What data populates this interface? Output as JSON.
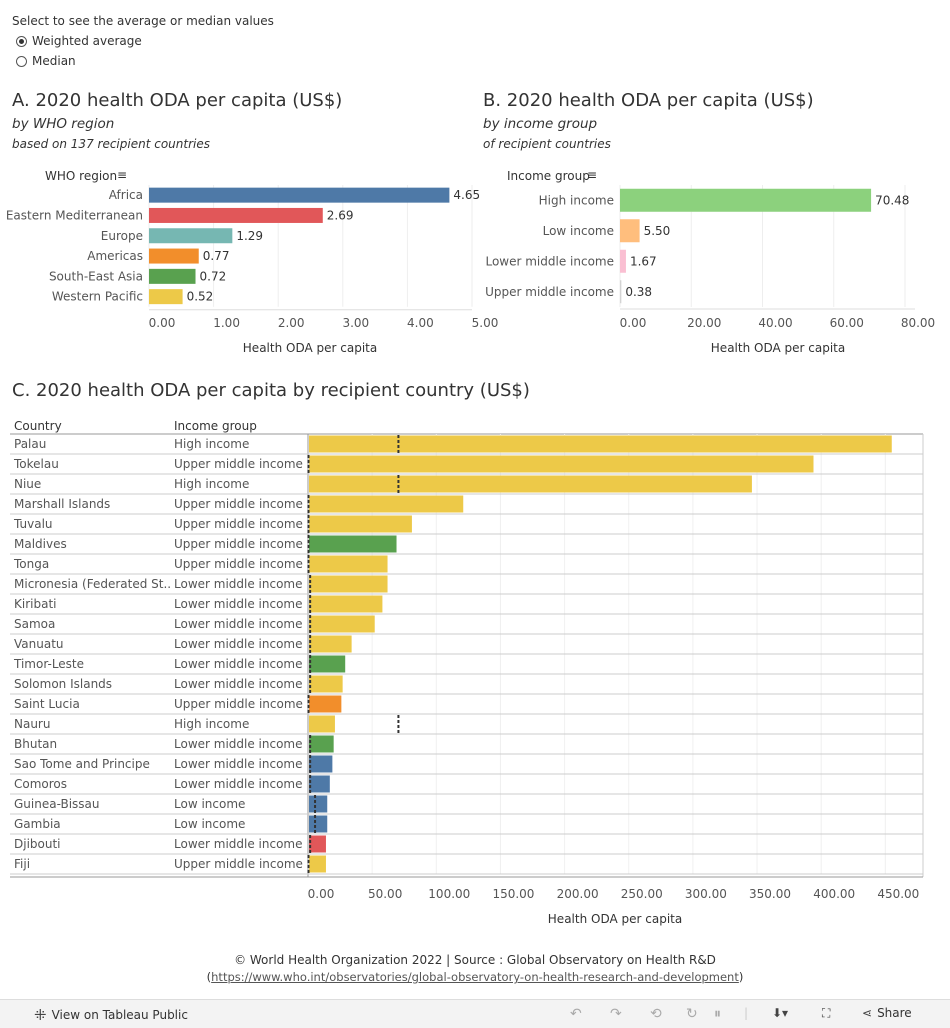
{
  "controls": {
    "title": "Select to see the average or median values",
    "options": [
      "Weighted average",
      "Median"
    ],
    "selected": "Weighted average"
  },
  "panelA": {
    "title": "A. 2020 health ODA per capita (US$)",
    "subtitle": "by WHO region",
    "subtitle2": "based on 137 recipient countries"
  },
  "panelB": {
    "title": "B. 2020 health ODA per capita (US$)",
    "subtitle": "by income group",
    "subtitle2": "of recipient countries"
  },
  "panelC": {
    "title": "C. 2020 health ODA per capita by recipient country (US$)"
  },
  "colors": {
    "Africa": "#4e79a7",
    "Eastern Mediterranean": "#e15759",
    "Europe": "#76b7b2",
    "Americas": "#f28e2b",
    "South-East Asia": "#59a14f",
    "Western Pacific": "#edc948",
    "High income": "#8cd17d",
    "Low income": "#ffbe7d",
    "Lower middle income": "#fabfd2",
    "Upper middle income": "#d4d4d4",
    "avg_line": "#333333"
  },
  "chart_data": [
    {
      "type": "bar",
      "id": "who",
      "orientation": "horizontal",
      "dim_header": "WHO region",
      "categories": [
        "Africa",
        "Eastern Mediterranean",
        "Europe",
        "Americas",
        "South-East Asia",
        "Western Pacific"
      ],
      "values": [
        4.65,
        2.69,
        1.29,
        0.77,
        0.72,
        0.52
      ],
      "labels": [
        "4.65",
        "2.69",
        "1.29",
        "0.77",
        "0.72",
        "0.52"
      ],
      "xlabel": "Health ODA per capita",
      "xlim": [
        0,
        5
      ],
      "ticks": [
        0,
        1,
        2,
        3,
        4,
        5
      ],
      "tick_labels": [
        "0.00",
        "1.00",
        "2.00",
        "3.00",
        "4.00",
        "5.00"
      ]
    },
    {
      "type": "bar",
      "id": "income",
      "orientation": "horizontal",
      "dim_header": "Income group",
      "categories": [
        "High income",
        "Low income",
        "Lower middle income",
        "Upper middle income"
      ],
      "values": [
        70.48,
        5.5,
        1.67,
        0.38
      ],
      "labels": [
        "70.48",
        "5.50",
        "1.67",
        "0.38"
      ],
      "xlabel": "Health ODA per capita",
      "xlim": [
        0,
        80
      ],
      "ticks": [
        0,
        20,
        40,
        60,
        80
      ],
      "tick_labels": [
        "0.00",
        "20.00",
        "40.00",
        "60.00",
        "80.00"
      ]
    },
    {
      "type": "bar",
      "id": "country",
      "orientation": "horizontal",
      "col_headers": [
        "Country",
        "Income group"
      ],
      "xlabel": "Health ODA per capita",
      "xlim": [
        0,
        470
      ],
      "ticks": [
        0,
        50,
        100,
        150,
        200,
        250,
        300,
        350,
        400,
        450
      ],
      "tick_labels": [
        "0.00",
        "50.00",
        "100.00",
        "150.00",
        "200.00",
        "250.00",
        "300.00",
        "350.00",
        "400.00",
        "450.00"
      ],
      "rows": [
        {
          "country": "Palau",
          "income": "High income",
          "region": "Western Pacific",
          "value": 455,
          "ref": 70.48
        },
        {
          "country": "Tokelau",
          "income": "Upper middle income",
          "region": "Western Pacific",
          "value": 394,
          "ref": 0.38
        },
        {
          "country": "Niue",
          "income": "High income",
          "region": "Western Pacific",
          "value": 346,
          "ref": 70.48
        },
        {
          "country": "Marshall Islands",
          "income": "Upper middle income",
          "region": "Western Pacific",
          "value": 121,
          "ref": 0.38
        },
        {
          "country": "Tuvalu",
          "income": "Upper middle income",
          "region": "Western Pacific",
          "value": 81,
          "ref": 0.38
        },
        {
          "country": "Maldives",
          "income": "Upper middle income",
          "region": "South-East Asia",
          "value": 69,
          "ref": 0.38
        },
        {
          "country": "Tonga",
          "income": "Upper middle income",
          "region": "Western Pacific",
          "value": 62,
          "ref": 0.38
        },
        {
          "country": "Micronesia (Federated St..",
          "income": "Lower middle income",
          "region": "Western Pacific",
          "value": 62,
          "ref": 1.67
        },
        {
          "country": "Kiribati",
          "income": "Lower middle income",
          "region": "Western Pacific",
          "value": 58,
          "ref": 1.67
        },
        {
          "country": "Samoa",
          "income": "Lower middle income",
          "region": "Western Pacific",
          "value": 52,
          "ref": 1.67
        },
        {
          "country": "Vanuatu",
          "income": "Lower middle income",
          "region": "Western Pacific",
          "value": 34,
          "ref": 1.67
        },
        {
          "country": "Timor-Leste",
          "income": "Lower middle income",
          "region": "South-East Asia",
          "value": 29,
          "ref": 1.67
        },
        {
          "country": "Solomon Islands",
          "income": "Lower middle income",
          "region": "Western Pacific",
          "value": 27,
          "ref": 1.67
        },
        {
          "country": "Saint Lucia",
          "income": "Upper middle income",
          "region": "Americas",
          "value": 26,
          "ref": 0.38
        },
        {
          "country": "Nauru",
          "income": "High income",
          "region": "Western Pacific",
          "value": 21,
          "ref": 70.48
        },
        {
          "country": "Bhutan",
          "income": "Lower middle income",
          "region": "South-East Asia",
          "value": 20,
          "ref": 1.67
        },
        {
          "country": "Sao Tome and Principe",
          "income": "Lower middle income",
          "region": "Africa",
          "value": 19,
          "ref": 1.67
        },
        {
          "country": "Comoros",
          "income": "Lower middle income",
          "region": "Africa",
          "value": 17,
          "ref": 1.67
        },
        {
          "country": "Guinea-Bissau",
          "income": "Low income",
          "region": "Africa",
          "value": 15,
          "ref": 5.5
        },
        {
          "country": "Gambia",
          "income": "Low income",
          "region": "Africa",
          "value": 15,
          "ref": 5.5
        },
        {
          "country": "Djibouti",
          "income": "Lower middle income",
          "region": "Eastern Mediterranean",
          "value": 14,
          "ref": 1.67
        },
        {
          "country": "Fiji",
          "income": "Upper middle income",
          "region": "Western Pacific",
          "value": 14,
          "ref": 0.38
        }
      ]
    }
  ],
  "footer": {
    "line1": "© World Health Organization 2022 | Source : Global Observatory on Health R&D",
    "open_paren": "(",
    "link": "https://www.who.int/observatories/global-observatory-on-health-research-and-development",
    "close_paren": ")"
  },
  "toolbar": {
    "view_label": "View on Tableau Public",
    "share_label": "Share"
  }
}
